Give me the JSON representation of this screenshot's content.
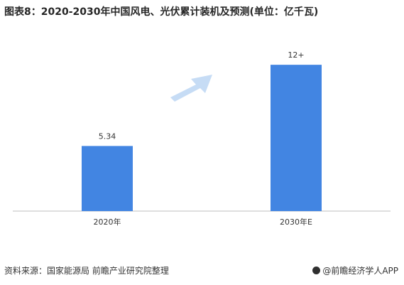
{
  "header": {
    "title": "图表8：2020-2030年中国风电、光伏累计装机及预测(单位：亿千瓦)"
  },
  "footer": {
    "source": "资料来源：国家能源局 前瞻产业研究院整理",
    "brand": "@前瞻经济学人APP"
  },
  "colors": {
    "bar": "#4285e2",
    "arrow": "#c6dcf5",
    "axis": "#bfbfbf"
  },
  "chart_data": {
    "type": "bar",
    "categories": [
      "2020年",
      "2030年E"
    ],
    "values": [
      5.34,
      12
    ],
    "data_labels": [
      "5.34",
      "12+"
    ],
    "title": "图表8：2020-2030年中国风电、光伏累计装机及预测(单位：亿千瓦)",
    "xlabel": "",
    "ylabel": "",
    "ylim": [
      0,
      12.3
    ],
    "grid": false,
    "legend": "none",
    "annotations": [
      "growth-arrow"
    ]
  }
}
